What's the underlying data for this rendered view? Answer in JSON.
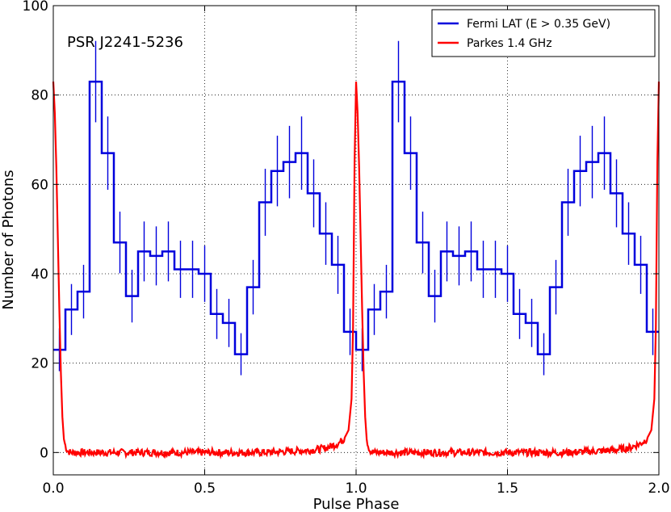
{
  "chart_data": {
    "type": "line",
    "xlabel": "Pulse Phase",
    "ylabel": "Number of Photons",
    "xlim": [
      0.0,
      2.0
    ],
    "ylim": [
      -5,
      100
    ],
    "x_ticks": [
      0.0,
      0.5,
      1.0,
      1.5,
      2.0
    ],
    "x_tick_labels": [
      "0.0",
      "0.5",
      "1.0",
      "1.5",
      "2.0"
    ],
    "y_ticks": [
      0,
      20,
      40,
      60,
      80,
      100
    ],
    "y_tick_labels": [
      "0",
      "20",
      "40",
      "60",
      "80",
      "100"
    ],
    "grid": true,
    "legend_position": "top-right",
    "annotation": "PSR J2241-5236",
    "bin_width": 0.02,
    "series": [
      {
        "name": "Fermi LAT (E > 0.35 GeV)",
        "style": "step-with-errorbars",
        "color": "#0000dd",
        "values": [
          23,
          32,
          36,
          83,
          67,
          47,
          35,
          45,
          44,
          45,
          41,
          41,
          40,
          31,
          29,
          22,
          37,
          56,
          63,
          65,
          67,
          58,
          49,
          42,
          27
        ],
        "errors": [
          4.8,
          5.7,
          6.0,
          9.1,
          8.2,
          6.9,
          5.9,
          6.7,
          6.6,
          6.7,
          6.4,
          6.4,
          6.3,
          5.6,
          5.4,
          4.7,
          6.1,
          7.5,
          7.9,
          8.1,
          8.2,
          7.6,
          7.0,
          6.5,
          5.2
        ]
      },
      {
        "name": "Parkes 1.4 GHz",
        "style": "line",
        "color": "#ff0000",
        "x": [
          0.0,
          0.005,
          0.01,
          0.015,
          0.02,
          0.025,
          0.03,
          0.035,
          0.04,
          0.045,
          0.05,
          0.06,
          0.08,
          0.1,
          0.3,
          0.5,
          0.7,
          0.85,
          0.9,
          0.94,
          0.96,
          0.975,
          0.985,
          0.99,
          0.995,
          1.0
        ],
        "values": [
          83,
          76,
          64,
          48,
          32,
          18,
          8,
          3,
          1.5,
          0.6,
          0.2,
          0,
          0,
          0,
          0,
          0,
          0,
          0.5,
          1,
          2,
          3,
          5,
          12,
          28,
          65,
          83
        ]
      }
    ]
  }
}
